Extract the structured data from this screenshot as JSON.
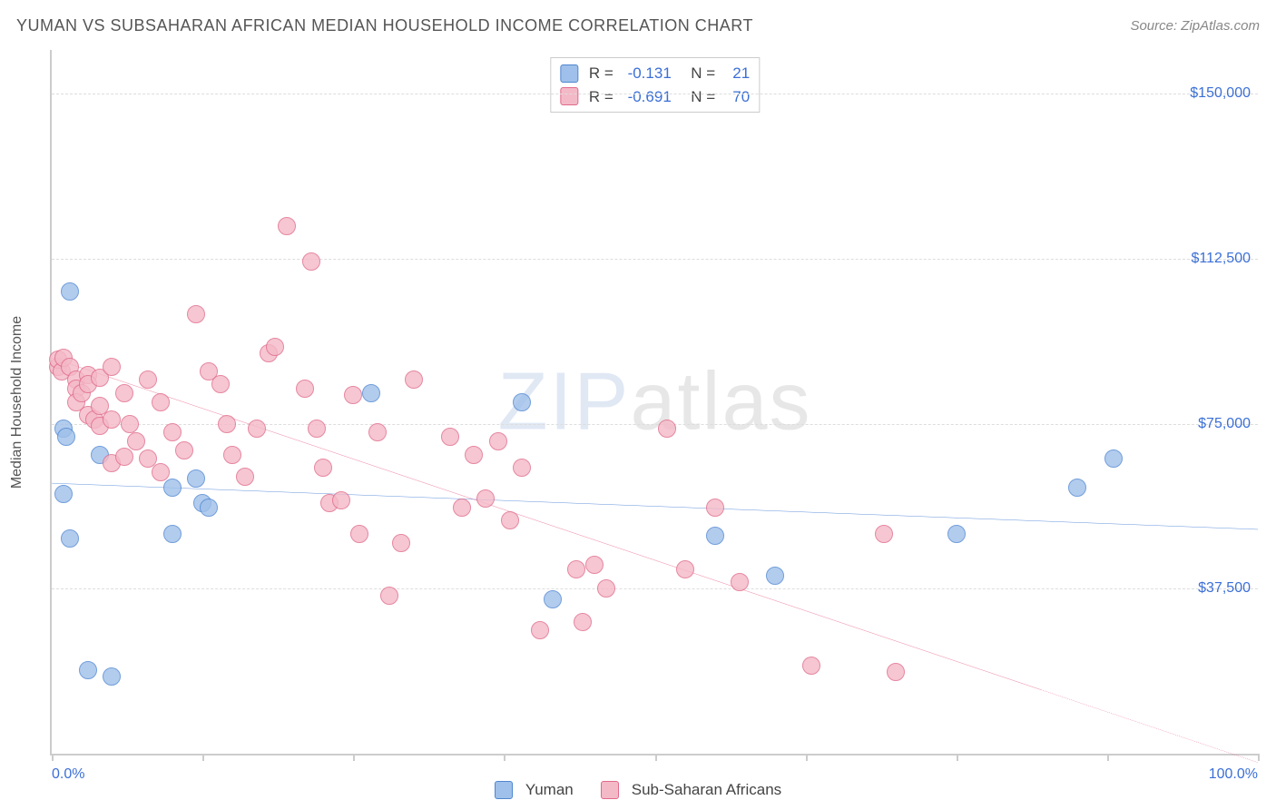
{
  "title": "YUMAN VS SUBSAHARAN AFRICAN MEDIAN HOUSEHOLD INCOME CORRELATION CHART",
  "source_label": "Source: ZipAtlas.com",
  "yaxis_title": "Median Household Income",
  "watermark": {
    "part1": "ZIP",
    "part2": "atlas"
  },
  "chart": {
    "type": "scatter",
    "xlim": [
      0,
      100
    ],
    "ylim": [
      0,
      160000
    ],
    "xtick_positions": [
      0,
      12.5,
      25,
      37.5,
      50,
      62.5,
      75,
      87.5,
      100
    ],
    "xtick_labels": {
      "0": "0.0%",
      "100": "100.0%"
    },
    "ytick_positions": [
      37500,
      75000,
      112500,
      150000
    ],
    "ytick_labels": [
      "$37,500",
      "$75,000",
      "$112,500",
      "$150,000"
    ],
    "background_color": "#ffffff",
    "grid_color": "#dddddd",
    "axis_color": "#cccccc",
    "tick_label_color": "#3b6fd6",
    "marker_radius": 10,
    "marker_border_width": 1.5,
    "marker_fill_opacity": 0.35,
    "trend_line_width": 3
  },
  "series": [
    {
      "key": "yuman",
      "label": "Yuman",
      "color_fill": "#9fc0ea",
      "color_stroke": "#4f86d1",
      "trend_color": "#2f6fd0",
      "R": "-0.131",
      "N": "21",
      "trend": {
        "x1": 0,
        "y1": 61500,
        "x2": 100,
        "y2": 51000,
        "dash_from_x": null
      },
      "points": [
        [
          1.5,
          105000
        ],
        [
          1.0,
          74000
        ],
        [
          1.2,
          72000
        ],
        [
          1.0,
          59000
        ],
        [
          1.5,
          49000
        ],
        [
          4.0,
          68000
        ],
        [
          3.0,
          19000
        ],
        [
          5.0,
          17500
        ],
        [
          10.0,
          60500
        ],
        [
          10.0,
          50000
        ],
        [
          12.0,
          62500
        ],
        [
          12.5,
          57000
        ],
        [
          13.0,
          56000
        ],
        [
          26.5,
          82000
        ],
        [
          39.0,
          80000
        ],
        [
          41.5,
          35000
        ],
        [
          55.0,
          49500
        ],
        [
          60.0,
          40500
        ],
        [
          75.0,
          50000
        ],
        [
          85.0,
          60500
        ],
        [
          88.0,
          67000
        ]
      ]
    },
    {
      "key": "ssa",
      "label": "Sub-Saharan Africans",
      "color_fill": "#f4b9c7",
      "color_stroke": "#e06a8a",
      "trend_color": "#e55a82",
      "R": "-0.691",
      "N": "70",
      "trend": {
        "x1": 0,
        "y1": 90000,
        "x2": 100,
        "y2": -2000,
        "dash_from_x": 82
      },
      "points": [
        [
          0.5,
          88000
        ],
        [
          0.5,
          89500
        ],
        [
          0.8,
          87000
        ],
        [
          1.0,
          90000
        ],
        [
          1.5,
          88000
        ],
        [
          2.0,
          85000
        ],
        [
          2.0,
          83000
        ],
        [
          2.0,
          80000
        ],
        [
          2.5,
          82000
        ],
        [
          3.0,
          86000
        ],
        [
          3.0,
          84000
        ],
        [
          3.0,
          77000
        ],
        [
          3.5,
          76000
        ],
        [
          4.0,
          85500
        ],
        [
          4.0,
          79000
        ],
        [
          4.0,
          74500
        ],
        [
          5.0,
          88000
        ],
        [
          5.0,
          76000
        ],
        [
          5.0,
          66000
        ],
        [
          6.0,
          82000
        ],
        [
          6.0,
          67500
        ],
        [
          6.5,
          75000
        ],
        [
          7.0,
          71000
        ],
        [
          8.0,
          67000
        ],
        [
          8.0,
          85000
        ],
        [
          9.0,
          80000
        ],
        [
          9.0,
          64000
        ],
        [
          10.0,
          73000
        ],
        [
          11.0,
          69000
        ],
        [
          12.0,
          100000
        ],
        [
          13.0,
          87000
        ],
        [
          14.0,
          84000
        ],
        [
          14.5,
          75000
        ],
        [
          15.0,
          68000
        ],
        [
          16.0,
          63000
        ],
        [
          17.0,
          74000
        ],
        [
          18.0,
          91000
        ],
        [
          18.5,
          92500
        ],
        [
          19.5,
          120000
        ],
        [
          21.0,
          83000
        ],
        [
          21.5,
          112000
        ],
        [
          22.0,
          74000
        ],
        [
          22.5,
          65000
        ],
        [
          23.0,
          57000
        ],
        [
          24.0,
          57500
        ],
        [
          25.0,
          81500
        ],
        [
          25.5,
          50000
        ],
        [
          27.0,
          73000
        ],
        [
          28.0,
          36000
        ],
        [
          29.0,
          48000
        ],
        [
          30.0,
          85000
        ],
        [
          33.0,
          72000
        ],
        [
          34.0,
          56000
        ],
        [
          35.0,
          68000
        ],
        [
          36.0,
          58000
        ],
        [
          37.0,
          71000
        ],
        [
          38.0,
          53000
        ],
        [
          39.0,
          65000
        ],
        [
          40.5,
          28000
        ],
        [
          43.5,
          42000
        ],
        [
          44.0,
          30000
        ],
        [
          45.0,
          43000
        ],
        [
          46.0,
          37500
        ],
        [
          51.0,
          74000
        ],
        [
          52.5,
          42000
        ],
        [
          55.0,
          56000
        ],
        [
          57.0,
          39000
        ],
        [
          63.0,
          20000
        ],
        [
          69.0,
          50000
        ],
        [
          70.0,
          18500
        ]
      ]
    }
  ],
  "legend_labels": {
    "yuman": "Yuman",
    "ssa": "Sub-Saharan Africans"
  },
  "stat_labels": {
    "R": "R =",
    "N": "N ="
  }
}
